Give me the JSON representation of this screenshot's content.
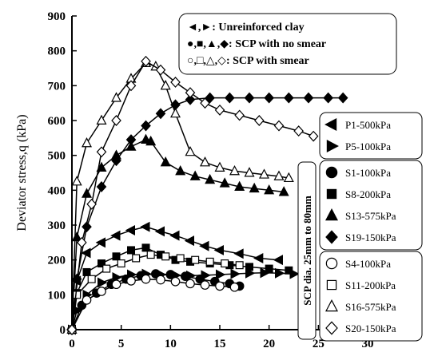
{
  "chart_data": {
    "type": "line",
    "title": "",
    "xlabel": "",
    "ylabel": "Deviator stress,q (kPa)",
    "xlim": [
      0,
      30
    ],
    "ylim": [
      0,
      900
    ],
    "xticks": [
      "0",
      "5",
      "10",
      "15",
      "20",
      "25",
      "30"
    ],
    "yticks": [
      "0",
      "100",
      "200",
      "300",
      "400",
      "500",
      "600",
      "700",
      "800",
      "900"
    ],
    "grid": false,
    "legend_position": "right",
    "top_legend": [
      "◄,►: Unreinforced clay",
      "●,■,▲,◆: SCP with no smear",
      "○,□,△,◇: SCP with smear"
    ],
    "band_label": "SCP dia. 25mm to 80mm",
    "series": [
      {
        "name": "P1-500kPa",
        "marker": "tri-left",
        "filled": true,
        "x": [
          0,
          0.5,
          1.5,
          3,
          4.5,
          6,
          7.5,
          9,
          10.5,
          12,
          13.5,
          15,
          17,
          19,
          21
        ],
        "y": [
          0,
          140,
          220,
          250,
          270,
          285,
          295,
          282,
          270,
          255,
          240,
          228,
          218,
          205,
          200
        ]
      },
      {
        "name": "P5-100kPa",
        "marker": "tri-right",
        "filled": true,
        "x": [
          0,
          0.5,
          1.5,
          3,
          4.5,
          6,
          7.5,
          9,
          10.5,
          12,
          13.5,
          15,
          16.5,
          18,
          19.5,
          21,
          22.5
        ],
        "y": [
          0,
          55,
          100,
          135,
          150,
          158,
          160,
          158,
          156,
          155,
          156,
          158,
          160,
          162,
          163,
          162,
          160
        ]
      },
      {
        "name": "S1-100kPa",
        "marker": "circle",
        "filled": true,
        "x": [
          0,
          1,
          2.5,
          4,
          5.5,
          7,
          8.5,
          10,
          11.5,
          13,
          14.5,
          16,
          17
        ],
        "y": [
          0,
          70,
          105,
          130,
          145,
          155,
          160,
          158,
          153,
          145,
          138,
          132,
          125
        ]
      },
      {
        "name": "S8-200kPa",
        "marker": "square",
        "filled": true,
        "x": [
          0,
          0.5,
          1.5,
          3,
          4.5,
          6,
          7.5,
          9,
          10.5,
          12,
          14,
          16,
          18,
          20,
          22
        ],
        "y": [
          0,
          105,
          165,
          190,
          210,
          228,
          235,
          215,
          200,
          195,
          190,
          185,
          180,
          175,
          170
        ]
      },
      {
        "name": "S13-575kPa",
        "marker": "triangle",
        "filled": true,
        "x": [
          0,
          0.5,
          1.5,
          3,
          4.5,
          6,
          7.5,
          8,
          9.5,
          11,
          12.5,
          14,
          15.5,
          17,
          18.5,
          20,
          21.5
        ],
        "y": [
          0,
          265,
          390,
          465,
          500,
          525,
          545,
          540,
          480,
          455,
          440,
          430,
          420,
          410,
          405,
          400,
          395
        ]
      },
      {
        "name": "S19-150kPa",
        "marker": "diamond",
        "filled": true,
        "x": [
          0,
          0.5,
          1.5,
          3,
          4.5,
          6,
          7.5,
          9,
          10.5,
          12,
          14,
          16,
          18,
          20,
          22,
          24,
          26,
          27.5
        ],
        "y": [
          0,
          145,
          295,
          410,
          485,
          545,
          585,
          620,
          645,
          660,
          665,
          665,
          665,
          665,
          665,
          665,
          665,
          665
        ]
      },
      {
        "name": "S4-100kPa",
        "marker": "circle",
        "filled": false,
        "x": [
          0,
          1.5,
          3,
          4.5,
          6,
          7.5,
          9,
          10.5,
          12,
          13.5,
          15,
          16.5
        ],
        "y": [
          0,
          85,
          110,
          130,
          140,
          145,
          143,
          138,
          132,
          128,
          125,
          122
        ]
      },
      {
        "name": "S11-200kPa",
        "marker": "square",
        "filled": false,
        "x": [
          0,
          0.5,
          2,
          3.5,
          5,
          6.5,
          8,
          9.5,
          11,
          12.5,
          14,
          15.5,
          17
        ],
        "y": [
          0,
          100,
          145,
          175,
          190,
          205,
          215,
          210,
          205,
          200,
          195,
          190,
          185
        ]
      },
      {
        "name": "S16-575kPa",
        "marker": "triangle",
        "filled": false,
        "x": [
          0,
          0.5,
          1.5,
          3,
          4.5,
          6,
          7.5,
          8.5,
          9.5,
          10.5,
          12,
          13.5,
          15,
          16.5,
          18,
          19.5,
          21,
          22
        ],
        "y": [
          0,
          425,
          535,
          600,
          665,
          720,
          765,
          755,
          700,
          620,
          510,
          480,
          465,
          455,
          450,
          445,
          440,
          435
        ]
      },
      {
        "name": "S20-150kPa",
        "marker": "diamond",
        "filled": false,
        "x": [
          0,
          1,
          2,
          3,
          4.5,
          6,
          7.5,
          9,
          10.5,
          12,
          13.5,
          15,
          17,
          19,
          21,
          23,
          24.5
        ],
        "y": [
          0,
          250,
          360,
          510,
          600,
          700,
          770,
          745,
          710,
          680,
          650,
          630,
          615,
          600,
          585,
          570,
          555
        ]
      }
    ]
  }
}
